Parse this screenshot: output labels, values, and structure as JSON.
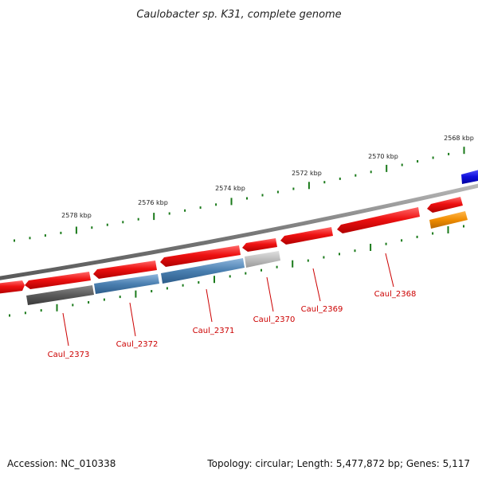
{
  "title": "Caulobacter sp. K31, complete genome",
  "footer": {
    "accession": "Accession: NC_010338",
    "summary": "Topology: circular; Length: 5,477,872 bp; Genes: 5,117"
  },
  "scale_labels": [
    "2568 kbp",
    "2570 kbp",
    "2572 kbp",
    "2574 kbp",
    "2576 kbp",
    "2578 kbp"
  ],
  "gene_labels": [
    "Caul_2368",
    "Caul_2369",
    "Caul_2370",
    "Caul_2371",
    "Caul_2372",
    "Caul_2373"
  ],
  "colors": {
    "backbone": "#8a8a8a",
    "gene_forward": "#ee1111",
    "gene_blue": "#4a7fb0",
    "gene_gray_dark": "#5a5a5a",
    "gene_gray_light": "#bdbdbd",
    "gene_orange": "#f08c00",
    "gene_strong_blue": "#1010dd",
    "tick_green": "#1a7a1a",
    "label_red": "#cc0000"
  }
}
